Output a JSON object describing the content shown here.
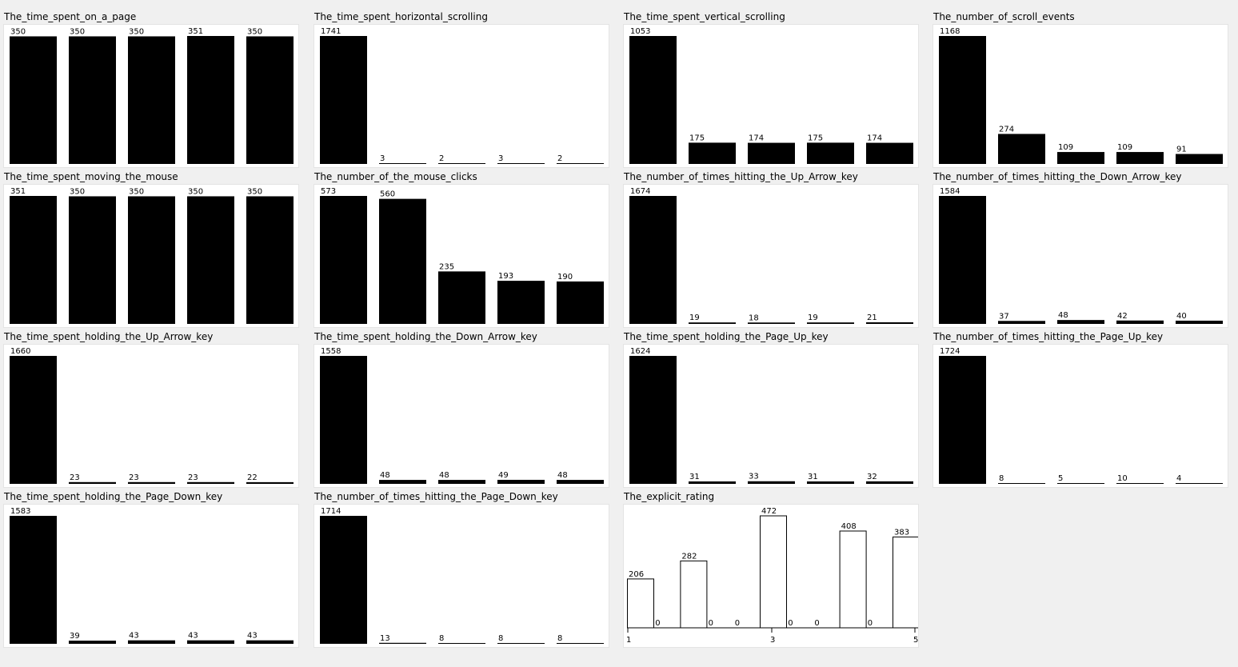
{
  "chart_data": [
    {
      "type": "bar",
      "title": "The_time_spent_on_a_page",
      "values": [
        350,
        350,
        350,
        351,
        350
      ]
    },
    {
      "type": "bar",
      "title": "The_time_spent_horizontal_scrolling",
      "values": [
        1741,
        3,
        2,
        3,
        2
      ]
    },
    {
      "type": "bar",
      "title": "The_time_spent_vertical_scrolling",
      "values": [
        1053,
        175,
        174,
        175,
        174
      ]
    },
    {
      "type": "bar",
      "title": "The_number_of_scroll_events",
      "values": [
        1168,
        274,
        109,
        109,
        91
      ]
    },
    {
      "type": "bar",
      "title": "The_time_spent_moving_the_mouse",
      "values": [
        351,
        350,
        350,
        350,
        350
      ]
    },
    {
      "type": "bar",
      "title": "The_number_of_the_mouse_clicks",
      "values": [
        573,
        560,
        235,
        193,
        190
      ]
    },
    {
      "type": "bar",
      "title": "The_number_of_times_hitting_the_Up_Arrow_key",
      "values": [
        1674,
        19,
        18,
        19,
        21
      ]
    },
    {
      "type": "bar",
      "title": "The_number_of_times_hitting_the_Down_Arrow_key",
      "values": [
        1584,
        37,
        48,
        42,
        40
      ]
    },
    {
      "type": "bar",
      "title": "The_time_spent_holding_the_Up_Arrow_key",
      "values": [
        1660,
        23,
        23,
        23,
        22
      ]
    },
    {
      "type": "bar",
      "title": "The_time_spent_holding_the_Down_Arrow_key",
      "values": [
        1558,
        48,
        48,
        49,
        48
      ]
    },
    {
      "type": "bar",
      "title": "The_time_spent_holding_the_Page_Up_key",
      "values": [
        1624,
        31,
        33,
        31,
        32
      ]
    },
    {
      "type": "bar",
      "title": "The_number_of_times_hitting_the_Page_Up_key",
      "values": [
        1724,
        8,
        5,
        10,
        4
      ]
    },
    {
      "type": "bar",
      "title": "The_time_spent_holding_the_Page_Down_key",
      "values": [
        1583,
        39,
        43,
        43,
        43
      ]
    },
    {
      "type": "bar",
      "title": "The_number_of_times_hitting_the_Page_Down_key",
      "values": [
        1714,
        13,
        8,
        8,
        8
      ]
    },
    {
      "type": "bar",
      "title": "The_explicit_rating",
      "style": "histogram",
      "values": [
        206,
        0,
        282,
        0,
        0,
        472,
        0,
        0,
        408,
        0,
        383
      ],
      "xticks": [
        "1",
        "3",
        "5"
      ],
      "xlim": [
        1,
        5
      ]
    }
  ],
  "colors": {
    "bar_fill": "#000000",
    "hist_fill": "#ffffff",
    "background": "#f0f0f0",
    "plot_bg": "#ffffff"
  }
}
